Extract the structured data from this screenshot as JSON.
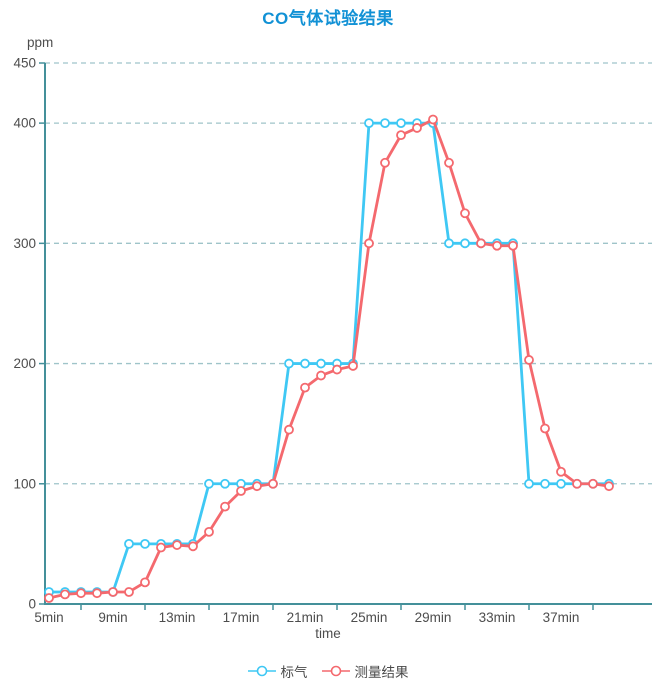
{
  "title": "CO气体试验结果",
  "y_axis_unit_label": "ppm",
  "x_axis_label": "time",
  "colors": {
    "title": "#1191d5",
    "standard_gas": "#3fc8f4",
    "measured": "#f4696e",
    "axis": "#44909a",
    "gridline": "#9fc4c9",
    "tick_label": "#4d4d4d",
    "legend_text": "#4a4a4a"
  },
  "legend": {
    "items": [
      {
        "label": "标气",
        "series_key": "standard-gas"
      },
      {
        "label": "测量结果",
        "series_key": "measured"
      }
    ]
  },
  "chart_data": {
    "type": "line",
    "title": "CO气体试验结果",
    "xlabel": "time",
    "ylabel": "ppm",
    "x_unit": "min",
    "grid": "horizontal-dashed",
    "legend_position": "bottom",
    "ylim": [
      0,
      450
    ],
    "y_ticks": [
      0,
      100,
      200,
      300,
      400,
      450
    ],
    "x_tick_values": [
      5,
      9,
      13,
      17,
      21,
      25,
      29,
      33,
      37
    ],
    "x_tick_labels": [
      "5min",
      "9min",
      "13min",
      "17min",
      "21min",
      "25min",
      "29min",
      "33min",
      "37min"
    ],
    "x": [
      5,
      6,
      7,
      8,
      9,
      10,
      11,
      12,
      13,
      14,
      15,
      16,
      17,
      18,
      19,
      20,
      21,
      22,
      23,
      24,
      25,
      26,
      27,
      28,
      29,
      30,
      31,
      32,
      33,
      34,
      35,
      36,
      37,
      38,
      39,
      40
    ],
    "series": [
      {
        "name": "标气",
        "key": "standard-gas",
        "color": "#3fc8f4",
        "marker": "hollow-circle",
        "values": [
          10,
          10,
          10,
          10,
          10,
          50,
          50,
          50,
          50,
          50,
          100,
          100,
          100,
          100,
          100,
          200,
          200,
          200,
          200,
          200,
          400,
          400,
          400,
          400,
          400,
          300,
          300,
          300,
          300,
          300,
          100,
          100,
          100,
          100,
          100,
          100
        ]
      },
      {
        "name": "测量结果",
        "key": "measured",
        "color": "#f4696e",
        "marker": "hollow-circle",
        "values": [
          5,
          8,
          9,
          9,
          10,
          10,
          18,
          47,
          49,
          48,
          60,
          81,
          94,
          98,
          100,
          145,
          180,
          190,
          195,
          198,
          300,
          367,
          390,
          396,
          403,
          367,
          325,
          300,
          298,
          298,
          203,
          146,
          110,
          100,
          100,
          98
        ]
      }
    ]
  }
}
